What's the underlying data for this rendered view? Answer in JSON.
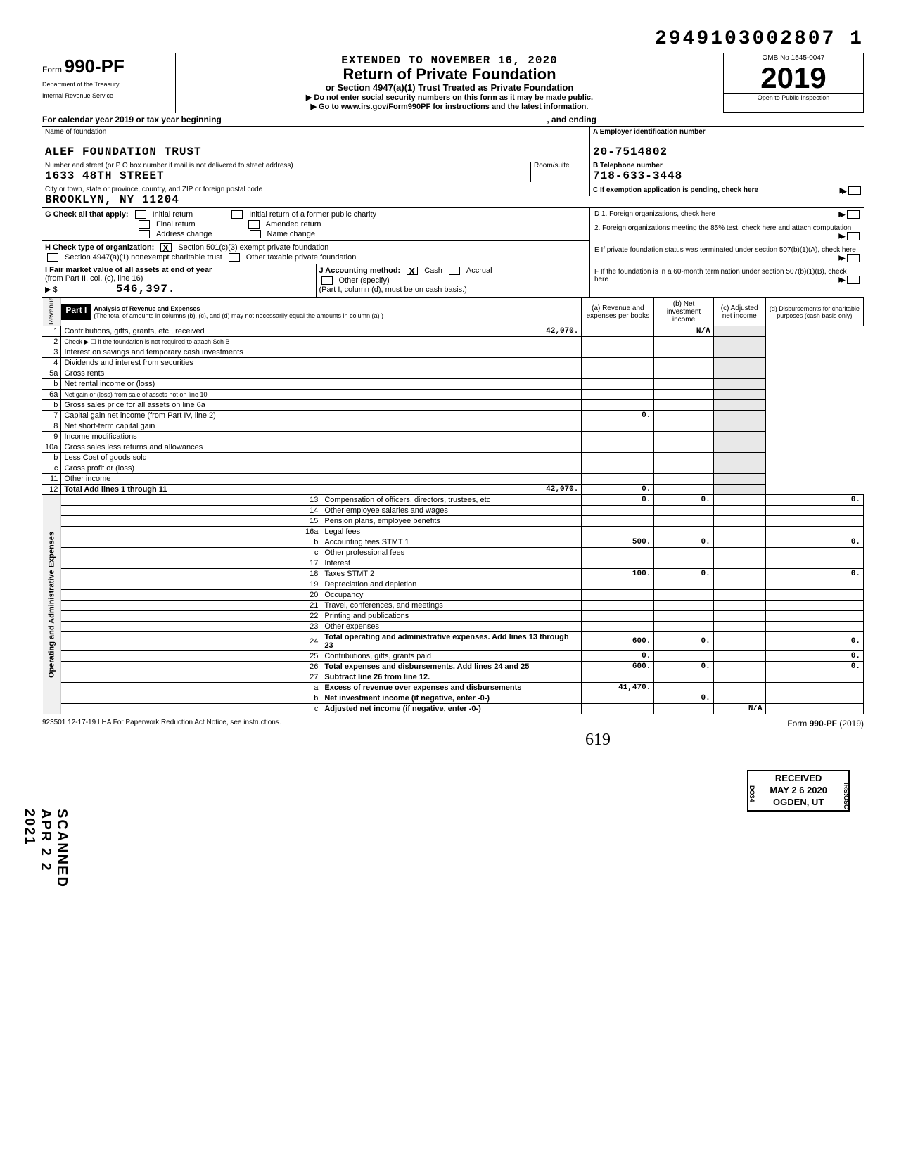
{
  "top_number": "2949103002807  1",
  "header": {
    "form_prefix": "Form",
    "form_number": "990-PF",
    "dept1": "Department of the Treasury",
    "dept2": "Internal Revenue Service",
    "extended": "EXTENDED TO NOVEMBER 16, 2020",
    "title": "Return of Private Foundation",
    "subtitle": "or Section 4947(a)(1) Trust Treated as Private Foundation",
    "instr1": "Do not enter social security numbers on this form as it may be made public.",
    "instr2": "Go to www.irs.gov/Form990PF for instructions and the latest information.",
    "omb": "OMB No  1545-0047",
    "year": "2019",
    "open": "Open to Public Inspection"
  },
  "calendar_row": {
    "text": "For calendar year 2019 or tax year beginning",
    "ending": ", and ending"
  },
  "name_block": {
    "label_name": "Name of foundation",
    "name": "ALEF FOUNDATION TRUST",
    "label_addr": "Number and street (or P O  box number if mail is not delivered to street address)",
    "label_room": "Room/suite",
    "address": "1633 48TH STREET",
    "label_city": "City or town, state or province, country, and ZIP or foreign postal code",
    "city": "BROOKLYN, NY   11204"
  },
  "right_block": {
    "a_label": "A  Employer identification number",
    "ein": "20-7514802",
    "b_label": "B  Telephone number",
    "phone": "718-633-3448",
    "c_label": "C  If exemption application is pending, check here",
    "d1": "D  1. Foreign organizations, check here",
    "d2": "2. Foreign organizations meeting the 85% test, check here and attach computation",
    "e": "E   If private foundation status was terminated under section 507(b)(1)(A), check here",
    "f": "F   If the foundation is in a 60-month termination under section 507(b)(1)(B), check here"
  },
  "section_g": {
    "g_label": "G  Check all that apply:",
    "g_opts": [
      "Initial return",
      "Initial return of a former public charity",
      "Final return",
      "Amended return",
      "Address change",
      "Name change"
    ],
    "h_label": "H  Check type of organization:",
    "h1": "Section 501(c)(3) exempt private foundation",
    "h2": "Section 4947(a)(1) nonexempt charitable trust",
    "h3": "Other taxable private foundation",
    "i_label": "I   Fair market value of all assets at end of year",
    "i_sub": "(from Part II, col. (c), line 16)",
    "i_arrow": "▶ $",
    "i_value": "546,397.",
    "j_label": "J   Accounting method:",
    "j_cash": "Cash",
    "j_accrual": "Accrual",
    "j_other": "Other (specify)",
    "j_note": "(Part I, column (d), must be on cash basis.)"
  },
  "part1": {
    "label": "Part I",
    "title": "Analysis of Revenue and Expenses",
    "note": "(The total of amounts in columns (b), (c), and (d) may not necessarily equal the amounts in column (a) )",
    "col_a": "(a) Revenue and expenses per books",
    "col_b": "(b) Net investment income",
    "col_c": "(c) Adjusted net income",
    "col_d": "(d) Disbursements for charitable purposes (cash basis only)"
  },
  "side_labels": {
    "revenue": "Revenue",
    "expenses": "Operating and Administrative Expenses"
  },
  "rows": [
    {
      "n": "1",
      "desc": "Contributions, gifts, grants, etc., received",
      "a": "42,070.",
      "c": "N/A"
    },
    {
      "n": "2",
      "desc": "Check ▶ ☐  if the foundation is not required to attach Sch  B"
    },
    {
      "n": "3",
      "desc": "Interest on savings and temporary cash investments"
    },
    {
      "n": "4",
      "desc": "Dividends and interest from securities"
    },
    {
      "n": "5a",
      "desc": "Gross rents"
    },
    {
      "n": "b",
      "desc": "Net rental income or (loss)"
    },
    {
      "n": "6a",
      "desc": "Net gain or (loss) from sale of assets not on line 10"
    },
    {
      "n": "b",
      "desc": "Gross sales price for all assets on line 6a"
    },
    {
      "n": "7",
      "desc": "Capital gain net income (from Part IV, line 2)",
      "b": "0."
    },
    {
      "n": "8",
      "desc": "Net short-term capital gain"
    },
    {
      "n": "9",
      "desc": "Income modifications"
    },
    {
      "n": "10a",
      "desc": "Gross sales less returns and allowances"
    },
    {
      "n": "b",
      "desc": "Less  Cost of goods sold"
    },
    {
      "n": "c",
      "desc": "Gross profit or (loss)"
    },
    {
      "n": "11",
      "desc": "Other income"
    },
    {
      "n": "12",
      "desc": "Total  Add lines 1 through 11",
      "a": "42,070.",
      "b": "0.",
      "bold": true
    },
    {
      "n": "13",
      "desc": "Compensation of officers, directors, trustees, etc",
      "a": "0.",
      "b": "0.",
      "d": "0."
    },
    {
      "n": "14",
      "desc": "Other employee salaries and wages"
    },
    {
      "n": "15",
      "desc": "Pension plans, employee benefits"
    },
    {
      "n": "16a",
      "desc": "Legal fees"
    },
    {
      "n": "b",
      "desc": "Accounting fees               STMT 1",
      "a": "500.",
      "b": "0.",
      "d": "0."
    },
    {
      "n": "c",
      "desc": "Other professional fees"
    },
    {
      "n": "17",
      "desc": "Interest"
    },
    {
      "n": "18",
      "desc": "Taxes                         STMT 2",
      "a": "100.",
      "b": "0.",
      "d": "0."
    },
    {
      "n": "19",
      "desc": "Depreciation and depletion"
    },
    {
      "n": "20",
      "desc": "Occupancy"
    },
    {
      "n": "21",
      "desc": "Travel, conferences, and meetings"
    },
    {
      "n": "22",
      "desc": "Printing and publications"
    },
    {
      "n": "23",
      "desc": "Other expenses"
    },
    {
      "n": "24",
      "desc": "Total operating and administrative expenses. Add lines 13 through 23",
      "a": "600.",
      "b": "0.",
      "d": "0.",
      "bold": true
    },
    {
      "n": "25",
      "desc": "Contributions, gifts, grants paid",
      "a": "0.",
      "d": "0."
    },
    {
      "n": "26",
      "desc": "Total expenses and disbursements. Add lines 24 and 25",
      "a": "600.",
      "b": "0.",
      "d": "0.",
      "bold": true
    },
    {
      "n": "27",
      "desc": "Subtract line 26 from line 12.",
      "bold": true
    },
    {
      "n": "a",
      "desc": "Excess of revenue over expenses and disbursements",
      "a": "41,470.",
      "bold": true
    },
    {
      "n": "b",
      "desc": "Net investment income (if negative, enter -0-)",
      "b": "0.",
      "bold": true
    },
    {
      "n": "c",
      "desc": "Adjusted net income (if negative, enter -0-)",
      "c": "N/A",
      "bold": true
    }
  ],
  "footer": {
    "left": "923501  12-17-19    LHA   For Paperwork Reduction Act Notice, see instructions.",
    "right": "Form 990-PF (2019)"
  },
  "stamps": {
    "scanned": "SCANNED APR 2 2 2021",
    "received_title": "RECEIVED",
    "received_date": "MAY 2 6 2020",
    "received_loc": "OGDEN, UT",
    "received_side1": "DO34",
    "received_side2": "IRS:OSC",
    "hand": "619"
  }
}
